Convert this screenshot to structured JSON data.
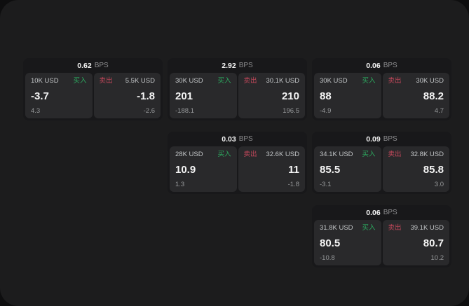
{
  "colors": {
    "buy_green": "#2cab60",
    "sell_red": "#c4485b"
  },
  "cards": [
    {
      "bps_value": "0.62",
      "bps_unit": "BPS",
      "buy": {
        "amount": "10K USD",
        "label": "买入",
        "price": "-3.7",
        "delta": "4.3"
      },
      "sell": {
        "label": "卖出",
        "amount": "5.5K USD",
        "price": "-1.8",
        "delta": "-2.6"
      }
    },
    {
      "bps_value": "2.92",
      "bps_unit": "BPS",
      "buy": {
        "amount": "30K USD",
        "label": "买入",
        "price": "201",
        "delta": "-188.1"
      },
      "sell": {
        "label": "卖出",
        "amount": "30.1K USD",
        "price": "210",
        "delta": "196.5"
      }
    },
    {
      "bps_value": "0.06",
      "bps_unit": "BPS",
      "buy": {
        "amount": "30K USD",
        "label": "买入",
        "price": "88",
        "delta": "-4.9"
      },
      "sell": {
        "label": "卖出",
        "amount": "30K USD",
        "price": "88.2",
        "delta": "4.7"
      }
    },
    {
      "bps_value": "0.03",
      "bps_unit": "BPS",
      "buy": {
        "amount": "28K USD",
        "label": "买入",
        "price": "10.9",
        "delta": "1.3"
      },
      "sell": {
        "label": "卖出",
        "amount": "32.6K USD",
        "price": "11",
        "delta": "-1.8"
      }
    },
    {
      "bps_value": "0.09",
      "bps_unit": "BPS",
      "buy": {
        "amount": "34.1K USD",
        "label": "买入",
        "price": "85.5",
        "delta": "-3.1"
      },
      "sell": {
        "label": "卖出",
        "amount": "32.8K USD",
        "price": "85.8",
        "delta": "3.0"
      }
    },
    {
      "bps_value": "0.06",
      "bps_unit": "BPS",
      "buy": {
        "amount": "31.8K USD",
        "label": "买入",
        "price": "80.5",
        "delta": "-10.8"
      },
      "sell": {
        "label": "卖出",
        "amount": "39.1K USD",
        "price": "80.7",
        "delta": "10.2"
      }
    }
  ]
}
